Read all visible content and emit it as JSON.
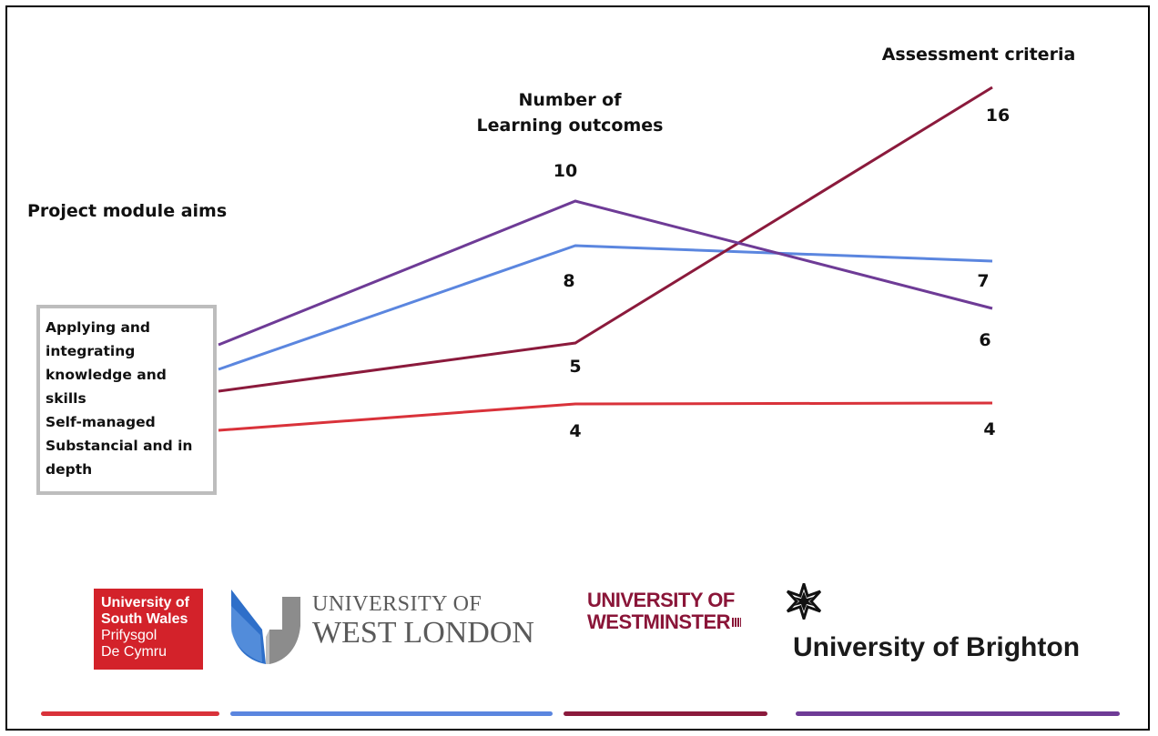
{
  "headings": {
    "aims": "Project module aims",
    "outcomes_line1": "Number of",
    "outcomes_line2": "Learning outcomes",
    "criteria": "Assessment criteria"
  },
  "aims_box": {
    "line1": "Applying and",
    "line2": "integrating",
    "line3": "knowledge and skills",
    "line4": "Self-managed",
    "line5": "Substancial and in",
    "line6": "depth"
  },
  "chart_data": {
    "type": "line",
    "categories": [
      "Project module aims",
      "Number of Learning outcomes",
      "Assessment criteria"
    ],
    "series": [
      {
        "name": "University of South Wales",
        "color": "#d9323a",
        "values": [
          null,
          4,
          4
        ],
        "labels": [
          "",
          "4",
          "4"
        ]
      },
      {
        "name": "University of West London",
        "color": "#5b86df",
        "values": [
          null,
          8,
          7
        ],
        "labels": [
          "",
          "8",
          "7"
        ]
      },
      {
        "name": "University of Westminster",
        "color": "#8b1a3c",
        "values": [
          null,
          5,
          16
        ],
        "labels": [
          "",
          "5",
          "16"
        ]
      },
      {
        "name": "University of Brighton",
        "color": "#6e3b96",
        "values": [
          null,
          10,
          6
        ],
        "labels": [
          "",
          "10",
          "6"
        ]
      }
    ]
  },
  "logos": {
    "usw": {
      "line1": "University of",
      "line2": "South Wales",
      "line3": "Prifysgol",
      "line4": "De Cymru",
      "color": "#d3222a"
    },
    "uwl": {
      "line1": "UNIVERSITY OF",
      "line2": "WEST LONDON"
    },
    "westminster": {
      "line1": "UNIVERSITY OF",
      "line2": "WESTMINSTER",
      "color": "#8a1538"
    },
    "brighton": {
      "name": "University of Brighton"
    }
  }
}
